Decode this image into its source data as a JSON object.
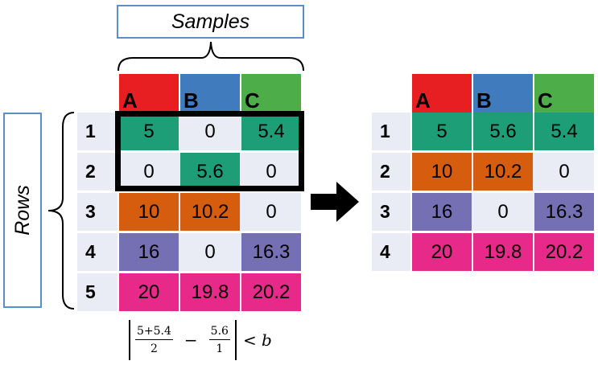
{
  "labels": {
    "samples": "Samples",
    "rows": "Rows"
  },
  "colors": {
    "A": "#e81f22",
    "B": "#3f7bbd",
    "C": "#4cad49",
    "green": "#1e9e76",
    "orange": "#d65c0e",
    "purple": "#7570b3",
    "pink": "#e7298a",
    "stripe": "#e9ecf4"
  },
  "left_table": {
    "columns": [
      "A",
      "B",
      "C"
    ],
    "rows": [
      {
        "label": "1",
        "cells": [
          "5",
          "0",
          "5.4"
        ]
      },
      {
        "label": "2",
        "cells": [
          "0",
          "5.6",
          "0"
        ]
      },
      {
        "label": "3",
        "cells": [
          "10",
          "10.2",
          "0"
        ]
      },
      {
        "label": "4",
        "cells": [
          "16",
          "0",
          "16.3"
        ]
      },
      {
        "label": "5",
        "cells": [
          "20",
          "19.8",
          "20.2"
        ]
      }
    ]
  },
  "right_table": {
    "columns": [
      "A",
      "B",
      "C"
    ],
    "rows": [
      {
        "label": "1",
        "cells": [
          "5",
          "5.6",
          "5.4"
        ]
      },
      {
        "label": "2",
        "cells": [
          "10",
          "10.2",
          "0"
        ]
      },
      {
        "label": "3",
        "cells": [
          "16",
          "0",
          "16.3"
        ]
      },
      {
        "label": "4",
        "cells": [
          "20",
          "19.8",
          "20.2"
        ]
      }
    ]
  },
  "formula": {
    "frac1_num": "5+5.4",
    "frac1_den": "2",
    "minus": "−",
    "frac2_num": "5.6",
    "frac2_den": "1",
    "rhs": "< b"
  },
  "arrow_icon": "right-arrow-icon"
}
